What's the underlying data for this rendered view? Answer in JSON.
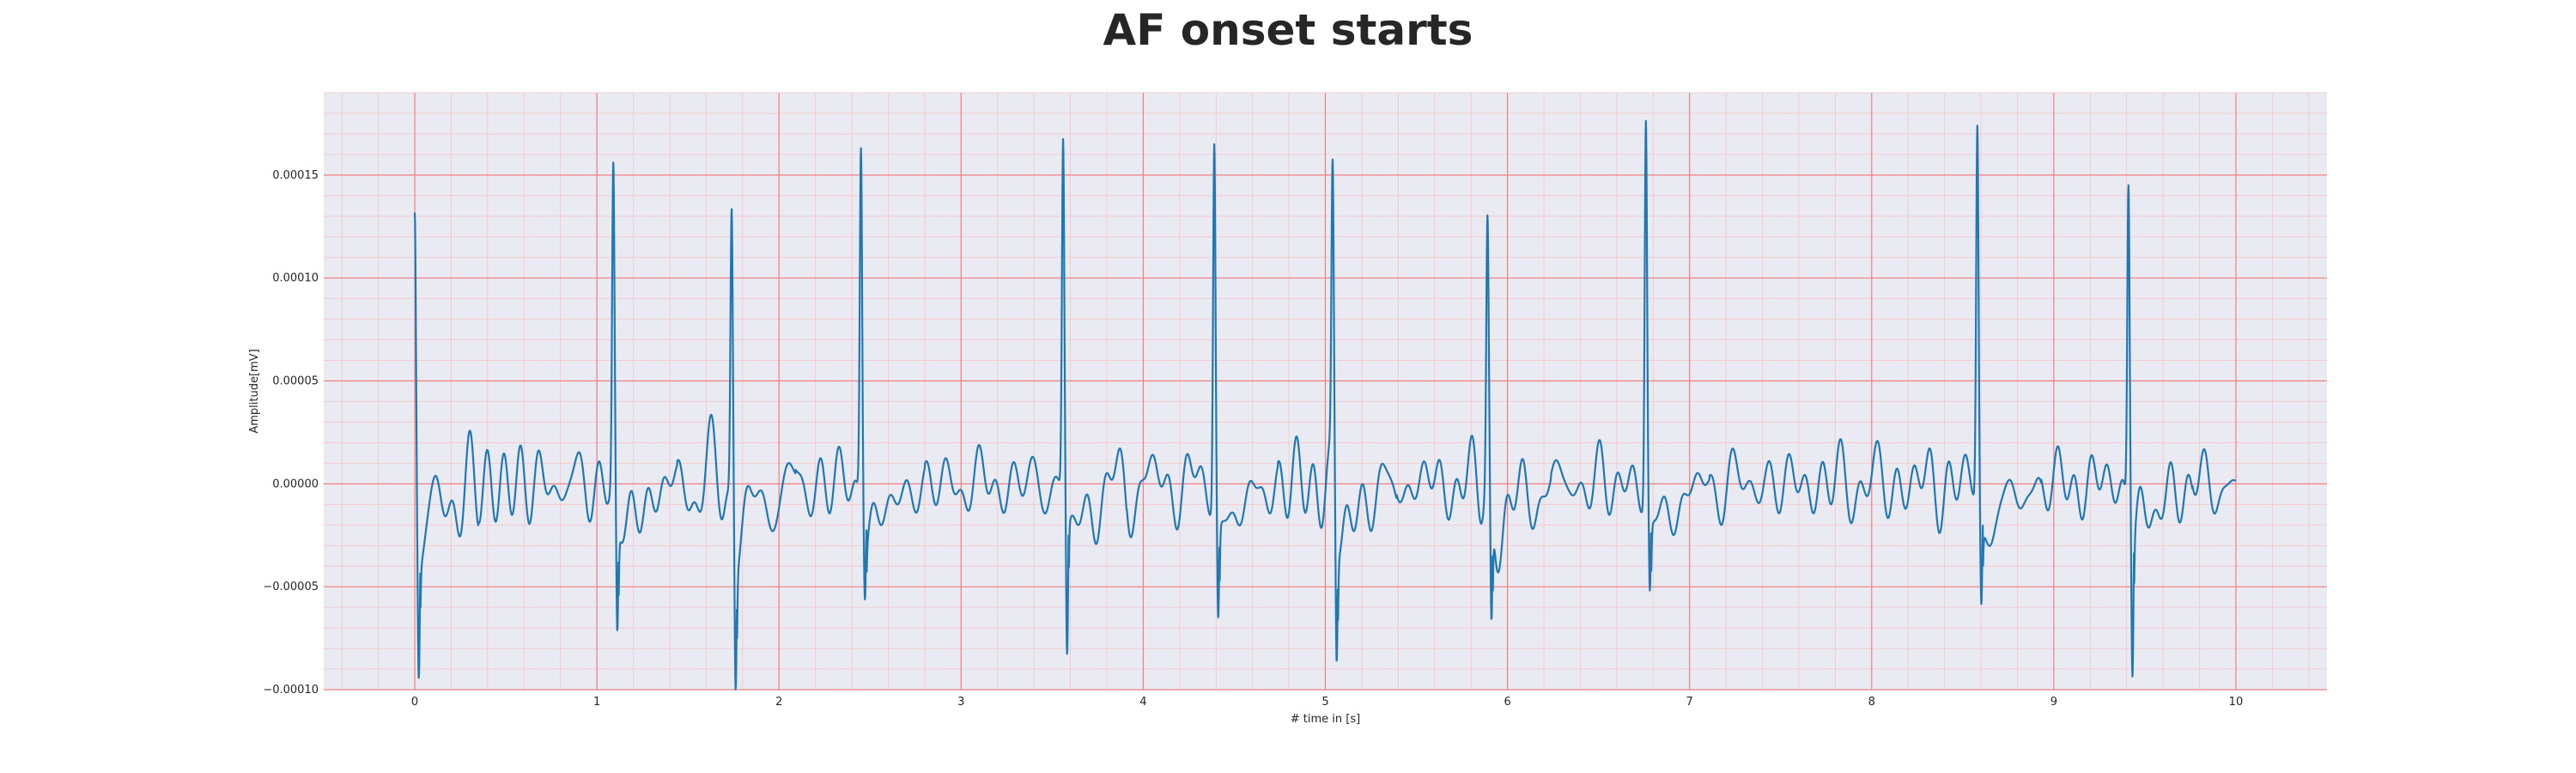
{
  "chart_data": {
    "type": "line",
    "title": "AF onset starts",
    "xlabel": "# time in [s]",
    "ylabel": "Amplitude[mV]",
    "xlim": [
      -0.5,
      10.5
    ],
    "ylim": [
      -0.0001,
      0.00019
    ],
    "xticks": [
      0,
      1,
      2,
      3,
      4,
      5,
      6,
      7,
      8,
      9,
      10
    ],
    "xtick_labels": [
      "0",
      "1",
      "2",
      "3",
      "4",
      "5",
      "6",
      "7",
      "8",
      "9",
      "10"
    ],
    "yticks": [
      -0.0001,
      -5e-05,
      0,
      5e-05,
      0.0001,
      0.00015
    ],
    "ytick_labels": [
      "−0.00010",
      "−0.00005",
      "0.00000",
      "0.00005",
      "0.00010",
      "0.00015"
    ],
    "grid": true,
    "colors": {
      "line": "#1f77b4",
      "plot_background": "#eaeaf2",
      "major_grid": "#f08080",
      "minor_grid": "#f7c3c8"
    },
    "series": [
      {
        "peaks": [
          {
            "t": 0.0,
            "up": 0.00014,
            "down": -8e-05
          },
          {
            "t": 1.09,
            "up": 0.000151,
            "down": -7.8e-05
          },
          {
            "t": 1.74,
            "up": 0.00014,
            "down": -8.5e-05
          },
          {
            "t": 2.45,
            "up": 0.000171,
            "down": -4.8e-05
          },
          {
            "t": 3.56,
            "up": 0.000168,
            "down": -8.8e-05
          },
          {
            "t": 4.39,
            "up": 0.000173,
            "down": -7e-05
          },
          {
            "t": 5.04,
            "up": 0.000142,
            "down": -8.3e-05
          },
          {
            "t": 5.89,
            "up": 0.00012,
            "down": -7.9e-05
          },
          {
            "t": 6.76,
            "up": 0.000182,
            "down": -5.8e-05
          },
          {
            "t": 8.58,
            "up": 0.000177,
            "down": -6.2e-05
          },
          {
            "t": 9.41,
            "up": 0.000157,
            "down": -8.5e-05
          }
        ]
      }
    ]
  }
}
